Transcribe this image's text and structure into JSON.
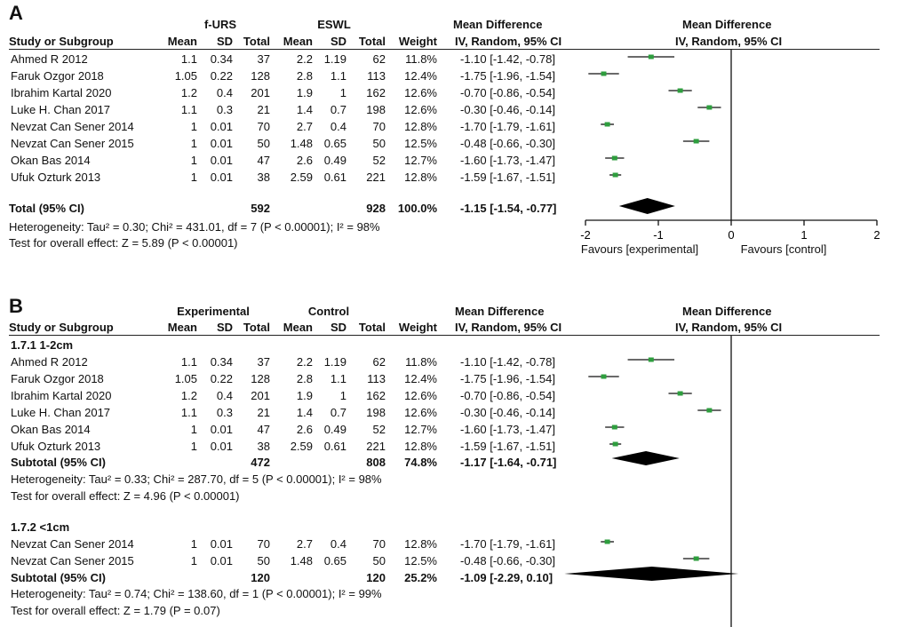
{
  "panel_a": {
    "letter": "A",
    "group1_label": "f-URS",
    "group2_label": "ESWL",
    "col_study": "Study or Subgroup",
    "col_mean": "Mean",
    "col_sd": "SD",
    "col_total": "Total",
    "col_weight": "Weight",
    "md_title": "Mean Difference",
    "md_sub": "IV, Random, 95% CI",
    "plot_title": "Mean Difference",
    "plot_sub": "IV, Random, 95% CI",
    "studies": [
      {
        "name": "Ahmed R 2012",
        "m1": "1.1",
        "sd1": "0.34",
        "n1": "37",
        "m2": "2.2",
        "sd2": "1.19",
        "n2": "62",
        "weight": "11.8%",
        "ci_text": "-1.10 [-1.42, -0.78]"
      },
      {
        "name": "Faruk Ozgor 2018",
        "m1": "1.05",
        "sd1": "0.22",
        "n1": "128",
        "m2": "2.8",
        "sd2": "1.1",
        "n2": "113",
        "weight": "12.4%",
        "ci_text": "-1.75 [-1.96, -1.54]"
      },
      {
        "name": "Ibrahim Kartal 2020",
        "m1": "1.2",
        "sd1": "0.4",
        "n1": "201",
        "m2": "1.9",
        "sd2": "1",
        "n2": "162",
        "weight": "12.6%",
        "ci_text": "-0.70 [-0.86, -0.54]"
      },
      {
        "name": "Luke H. Chan 2017",
        "m1": "1.1",
        "sd1": "0.3",
        "n1": "21",
        "m2": "1.4",
        "sd2": "0.7",
        "n2": "198",
        "weight": "12.6%",
        "ci_text": "-0.30 [-0.46, -0.14]"
      },
      {
        "name": "Nevzat Can Sener 2014",
        "m1": "1",
        "sd1": "0.01",
        "n1": "70",
        "m2": "2.7",
        "sd2": "0.4",
        "n2": "70",
        "weight": "12.8%",
        "ci_text": "-1.70 [-1.79, -1.61]"
      },
      {
        "name": "Nevzat Can Sener 2015",
        "m1": "1",
        "sd1": "0.01",
        "n1": "50",
        "m2": "1.48",
        "sd2": "0.65",
        "n2": "50",
        "weight": "12.5%",
        "ci_text": "-0.48 [-0.66, -0.30]"
      },
      {
        "name": "Okan Bas 2014",
        "m1": "1",
        "sd1": "0.01",
        "n1": "47",
        "m2": "2.6",
        "sd2": "0.49",
        "n2": "52",
        "weight": "12.7%",
        "ci_text": "-1.60 [-1.73, -1.47]"
      },
      {
        "name": "Ufuk Ozturk 2013",
        "m1": "1",
        "sd1": "0.01",
        "n1": "38",
        "m2": "2.59",
        "sd2": "0.61",
        "n2": "221",
        "weight": "12.8%",
        "ci_text": "-1.59 [-1.67, -1.51]"
      }
    ],
    "total": {
      "label": "Total (95% CI)",
      "n1": "592",
      "n2": "928",
      "weight": "100.0%",
      "ci_text": "-1.15 [-1.54, -0.77]"
    },
    "heterogeneity": "Heterogeneity: Tau² = 0.30; Chi² = 431.01, df = 7 (P < 0.00001); I² = 98%",
    "overall": "Test for overall effect: Z = 5.89 (P < 0.00001)",
    "axis_ticks": [
      "-2",
      "-1",
      "0",
      "1",
      "2"
    ],
    "favours_left": "Favours [experimental]",
    "favours_right": "Favours [control]"
  },
  "panel_b": {
    "letter": "B",
    "group1_label": "Experimental",
    "group2_label": "Control",
    "col_study": "Study or Subgroup",
    "col_mean": "Mean",
    "col_sd": "SD",
    "col_total": "Total",
    "col_weight": "Weight",
    "md_title": "Mean Difference",
    "md_sub": "IV, Random, 95% CI",
    "plot_title": "Mean Difference",
    "plot_sub": "IV, Random, 95% CI",
    "subgroups": [
      {
        "label": "1.7.1 1-2cm",
        "studies": [
          {
            "name": "Ahmed R 2012",
            "m1": "1.1",
            "sd1": "0.34",
            "n1": "37",
            "m2": "2.2",
            "sd2": "1.19",
            "n2": "62",
            "weight": "11.8%",
            "ci_text": "-1.10 [-1.42, -0.78]"
          },
          {
            "name": "Faruk Ozgor 2018",
            "m1": "1.05",
            "sd1": "0.22",
            "n1": "128",
            "m2": "2.8",
            "sd2": "1.1",
            "n2": "113",
            "weight": "12.4%",
            "ci_text": "-1.75 [-1.96, -1.54]"
          },
          {
            "name": "Ibrahim Kartal 2020",
            "m1": "1.2",
            "sd1": "0.4",
            "n1": "201",
            "m2": "1.9",
            "sd2": "1",
            "n2": "162",
            "weight": "12.6%",
            "ci_text": "-0.70 [-0.86, -0.54]"
          },
          {
            "name": "Luke H. Chan 2017",
            "m1": "1.1",
            "sd1": "0.3",
            "n1": "21",
            "m2": "1.4",
            "sd2": "0.7",
            "n2": "198",
            "weight": "12.6%",
            "ci_text": "-0.30 [-0.46, -0.14]"
          },
          {
            "name": "Okan Bas 2014",
            "m1": "1",
            "sd1": "0.01",
            "n1": "47",
            "m2": "2.6",
            "sd2": "0.49",
            "n2": "52",
            "weight": "12.7%",
            "ci_text": "-1.60 [-1.73, -1.47]"
          },
          {
            "name": "Ufuk Ozturk 2013",
            "m1": "1",
            "sd1": "0.01",
            "n1": "38",
            "m2": "2.59",
            "sd2": "0.61",
            "n2": "221",
            "weight": "12.8%",
            "ci_text": "-1.59 [-1.67, -1.51]"
          }
        ],
        "subtotal": {
          "label": "Subtotal (95% CI)",
          "n1": "472",
          "n2": "808",
          "weight": "74.8%",
          "ci_text": "-1.17 [-1.64, -0.71]"
        },
        "heterogeneity": "Heterogeneity: Tau² = 0.33; Chi² = 287.70, df = 5 (P < 0.00001); I² = 98%",
        "overall": "Test for overall effect: Z = 4.96 (P < 0.00001)"
      },
      {
        "label": "1.7.2 <1cm",
        "studies": [
          {
            "name": "Nevzat Can Sener 2014",
            "m1": "1",
            "sd1": "0.01",
            "n1": "70",
            "m2": "2.7",
            "sd2": "0.4",
            "n2": "70",
            "weight": "12.8%",
            "ci_text": "-1.70 [-1.79, -1.61]"
          },
          {
            "name": "Nevzat Can Sener 2015",
            "m1": "1",
            "sd1": "0.01",
            "n1": "50",
            "m2": "1.48",
            "sd2": "0.65",
            "n2": "50",
            "weight": "12.5%",
            "ci_text": "-0.48 [-0.66, -0.30]"
          }
        ],
        "subtotal": {
          "label": "Subtotal (95% CI)",
          "n1": "120",
          "n2": "120",
          "weight": "25.2%",
          "ci_text": "-1.09 [-2.29, 0.10]"
        },
        "heterogeneity": "Heterogeneity: Tau² = 0.74; Chi² = 138.60, df = 1 (P < 0.00001); I² = 99%",
        "overall": "Test for overall effect: Z = 1.79 (P = 0.07)"
      }
    ]
  },
  "colors": {
    "marker": "#2e9e3e",
    "line": "#111111",
    "diamond": "#000000"
  },
  "chart_data": [
    {
      "type": "forest",
      "title": "Mean Difference IV, Random, 95% CI",
      "xlim": [
        -2,
        2
      ],
      "xticks": [
        -2,
        -1,
        0,
        1,
        2
      ],
      "xlabel_left": "Favours [experimental]",
      "xlabel_right": "Favours [control]",
      "studies": [
        {
          "name": "Ahmed R 2012",
          "md": -1.1,
          "lo": -1.42,
          "hi": -0.78,
          "weight": 11.8
        },
        {
          "name": "Faruk Ozgor 2018",
          "md": -1.75,
          "lo": -1.96,
          "hi": -1.54,
          "weight": 12.4
        },
        {
          "name": "Ibrahim Kartal 2020",
          "md": -0.7,
          "lo": -0.86,
          "hi": -0.54,
          "weight": 12.6
        },
        {
          "name": "Luke H. Chan 2017",
          "md": -0.3,
          "lo": -0.46,
          "hi": -0.14,
          "weight": 12.6
        },
        {
          "name": "Nevzat Can Sener 2014",
          "md": -1.7,
          "lo": -1.79,
          "hi": -1.61,
          "weight": 12.8
        },
        {
          "name": "Nevzat Can Sener 2015",
          "md": -0.48,
          "lo": -0.66,
          "hi": -0.3,
          "weight": 12.5
        },
        {
          "name": "Okan Bas 2014",
          "md": -1.6,
          "lo": -1.73,
          "hi": -1.47,
          "weight": 12.7
        },
        {
          "name": "Ufuk Ozturk 2013",
          "md": -1.59,
          "lo": -1.67,
          "hi": -1.51,
          "weight": 12.8
        }
      ],
      "pooled": {
        "name": "Total (95% CI)",
        "md": -1.15,
        "lo": -1.54,
        "hi": -0.77
      }
    },
    {
      "type": "forest",
      "title": "Mean Difference IV, Random, 95% CI",
      "xlim": [
        -2,
        2
      ],
      "subgroups": [
        {
          "name": "1.7.1 1-2cm",
          "studies": [
            {
              "name": "Ahmed R 2012",
              "md": -1.1,
              "lo": -1.42,
              "hi": -0.78,
              "weight": 11.8
            },
            {
              "name": "Faruk Ozgor 2018",
              "md": -1.75,
              "lo": -1.96,
              "hi": -1.54,
              "weight": 12.4
            },
            {
              "name": "Ibrahim Kartal 2020",
              "md": -0.7,
              "lo": -0.86,
              "hi": -0.54,
              "weight": 12.6
            },
            {
              "name": "Luke H. Chan 2017",
              "md": -0.3,
              "lo": -0.46,
              "hi": -0.14,
              "weight": 12.6
            },
            {
              "name": "Okan Bas 2014",
              "md": -1.6,
              "lo": -1.73,
              "hi": -1.47,
              "weight": 12.7
            },
            {
              "name": "Ufuk Ozturk 2013",
              "md": -1.59,
              "lo": -1.67,
              "hi": -1.51,
              "weight": 12.8
            }
          ],
          "pooled": {
            "name": "Subtotal (95% CI)",
            "md": -1.17,
            "lo": -1.64,
            "hi": -0.71
          }
        },
        {
          "name": "1.7.2 <1cm",
          "studies": [
            {
              "name": "Nevzat Can Sener 2014",
              "md": -1.7,
              "lo": -1.79,
              "hi": -1.61,
              "weight": 12.8
            },
            {
              "name": "Nevzat Can Sener 2015",
              "md": -0.48,
              "lo": -0.66,
              "hi": -0.3,
              "weight": 12.5
            }
          ],
          "pooled": {
            "name": "Subtotal (95% CI)",
            "md": -1.09,
            "lo": -2.29,
            "hi": 0.1
          }
        }
      ]
    }
  ]
}
